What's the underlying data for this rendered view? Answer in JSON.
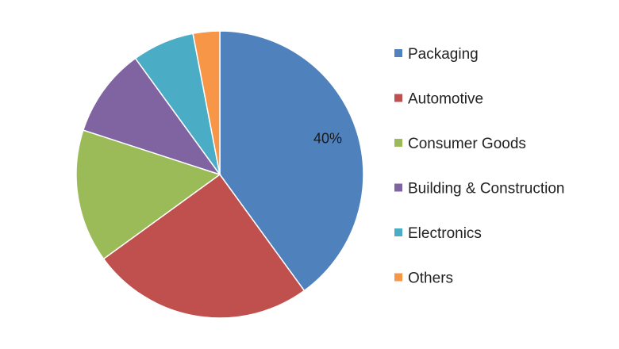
{
  "chart_data": {
    "type": "pie",
    "title": "",
    "categories": [
      "Packaging",
      "Automotive",
      "Consumer Goods",
      "Building & Construction",
      "Electronics",
      "Others"
    ],
    "values": [
      40,
      25,
      15,
      10,
      7,
      3
    ],
    "colors": [
      "#4f81bd",
      "#c0504d",
      "#9bbb59",
      "#8064a2",
      "#4bacc6",
      "#f79646"
    ],
    "data_labels": [
      "40%",
      "",
      "",
      "",
      "",
      ""
    ],
    "start_angle_deg": 0,
    "direction": "clockwise",
    "legend": {
      "position": "right"
    }
  }
}
